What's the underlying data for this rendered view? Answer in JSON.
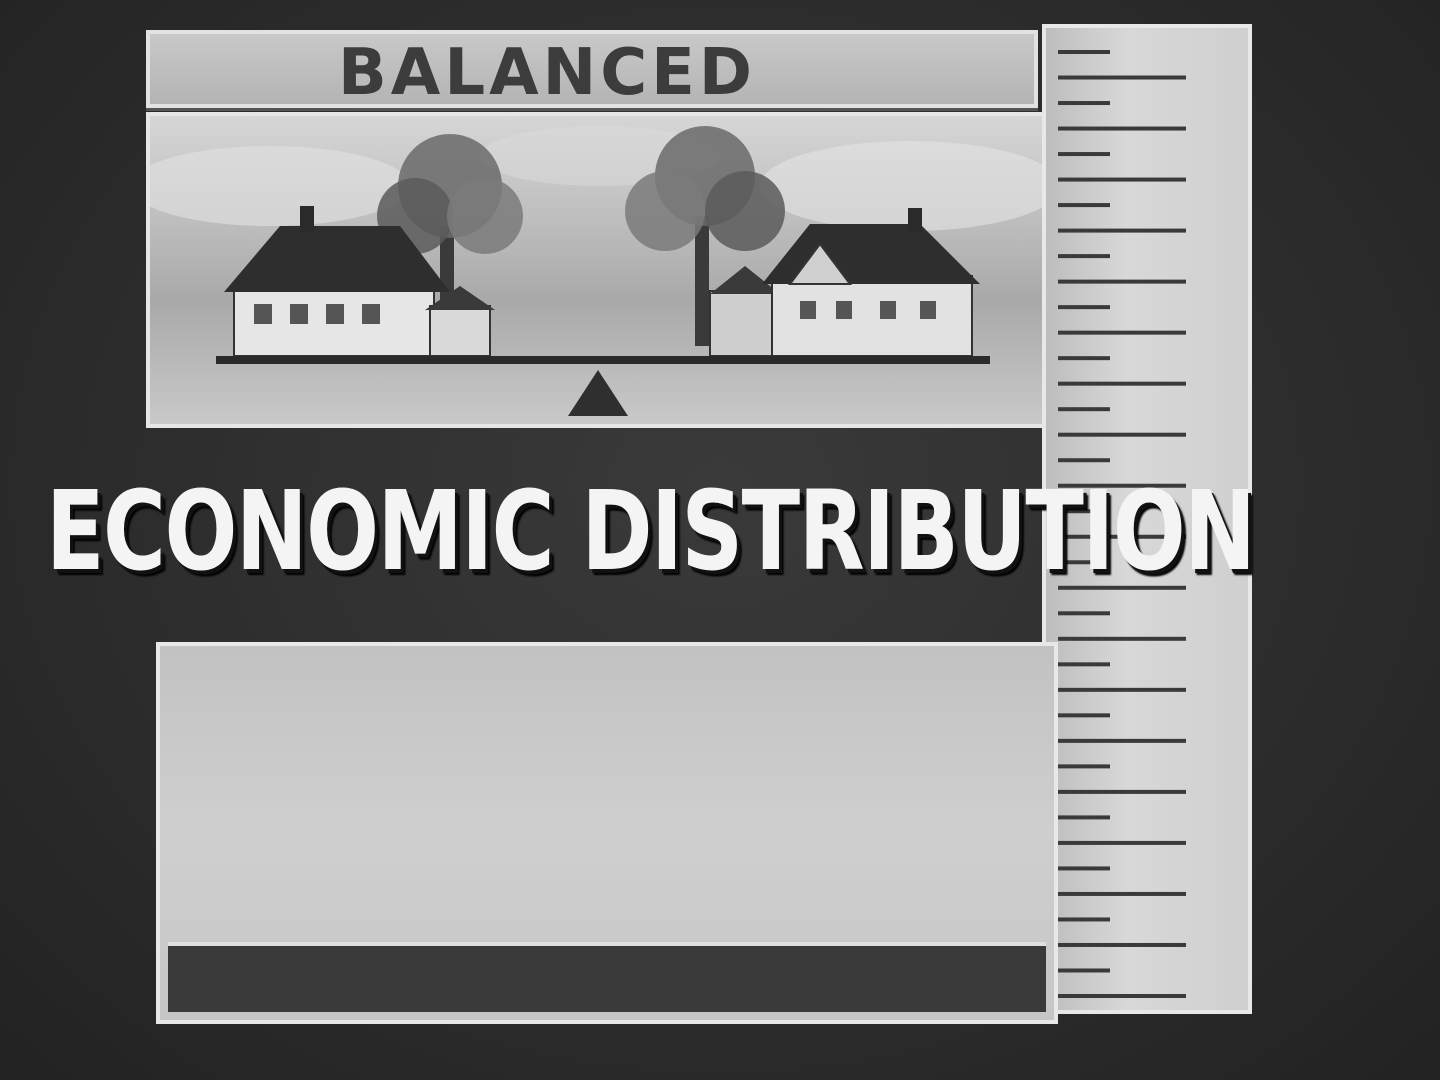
{
  "top_label": "BALANCED",
  "main_title": "ECONOMIC DISTRIBUTION",
  "scene": {
    "left_item": "house-icon",
    "right_item": "house-icon",
    "fulcrum": "triangle-fulcrum-icon",
    "trees": "tree-icon"
  },
  "ruler": {
    "tick_count": 38,
    "major_every": 2
  },
  "colors": {
    "background": "#2f2f2f",
    "panel": "#c8c8c8",
    "title_text": "#f4f4f4",
    "top_label_text": "#3c3c3c"
  }
}
